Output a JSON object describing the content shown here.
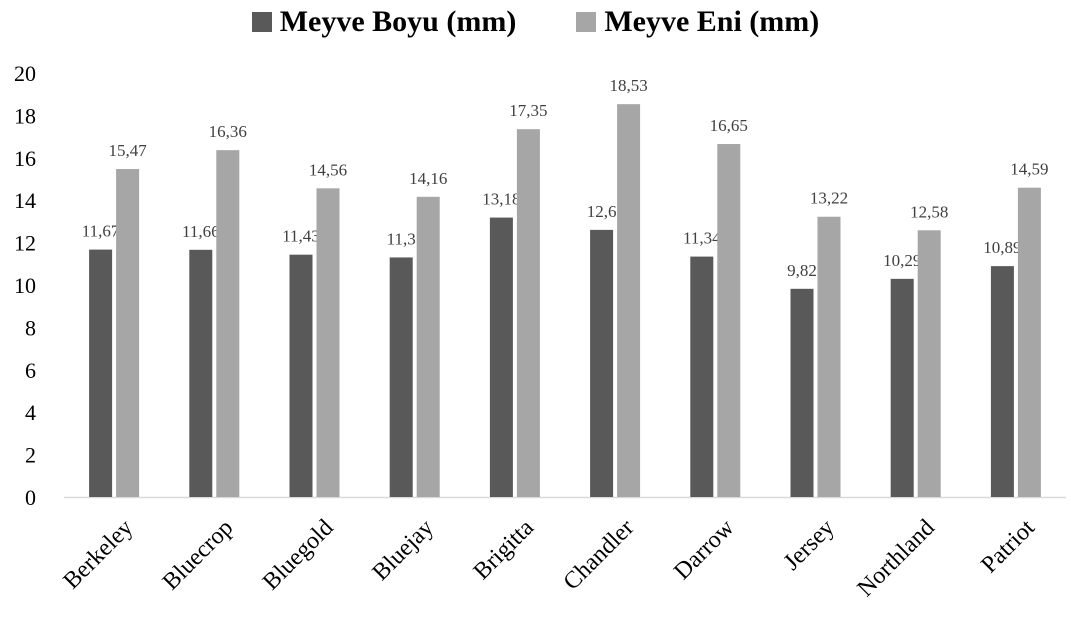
{
  "colors": {
    "series1": "#595959",
    "series2": "#a6a6a6",
    "axis": "#d9d9d9"
  },
  "chart_data": {
    "type": "bar",
    "title": "",
    "xlabel": "",
    "ylabel": "",
    "ylim": [
      0,
      20
    ],
    "yticks": [
      "0",
      "2",
      "4",
      "6",
      "8",
      "10",
      "12",
      "14",
      "16",
      "18",
      "20"
    ],
    "grid": false,
    "legend_position": "top",
    "categories": [
      "Berkeley",
      "Bluecrop",
      "Bluegold",
      "Bluejay",
      "Brigitta",
      "Chandler",
      "Darrow",
      "Jersey",
      "Northland",
      "Patriot"
    ],
    "series": [
      {
        "name": "Meyve Boyu (mm)",
        "values": [
          11.67,
          11.66,
          11.43,
          11.3,
          13.18,
          12.6,
          11.34,
          9.82,
          10.29,
          10.89
        ],
        "labels": [
          "11,67",
          "11,66",
          "11,43",
          "11,3",
          "13,18",
          "12,6",
          "11,34",
          "9,82",
          "10,29",
          "10,89"
        ]
      },
      {
        "name": "Meyve Eni (mm)",
        "values": [
          15.47,
          16.36,
          14.56,
          14.16,
          17.35,
          18.53,
          16.65,
          13.22,
          12.58,
          14.59
        ],
        "labels": [
          "15,47",
          "16,36",
          "14,56",
          "14,16",
          "17,35",
          "18,53",
          "16,65",
          "13,22",
          "12,58",
          "14,59"
        ]
      }
    ]
  }
}
